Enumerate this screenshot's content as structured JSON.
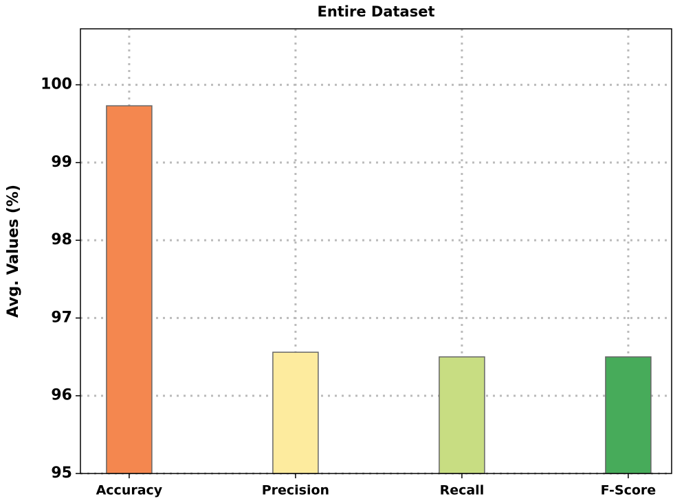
{
  "chart_data": {
    "type": "bar",
    "title": "Entire Dataset",
    "y_label": "Avg. Values (%)",
    "categories": [
      "Accuracy",
      "Precision",
      "Recall",
      "F-Score"
    ],
    "values": [
      99.73,
      96.56,
      96.5,
      96.5
    ],
    "colors": [
      "#f4874f",
      "#fdeb9e",
      "#c8dd82",
      "#47ab5a"
    ],
    "ylim": [
      95,
      100.72
    ],
    "yticks": [
      95,
      96,
      97,
      98,
      99,
      100
    ],
    "grid": true
  }
}
